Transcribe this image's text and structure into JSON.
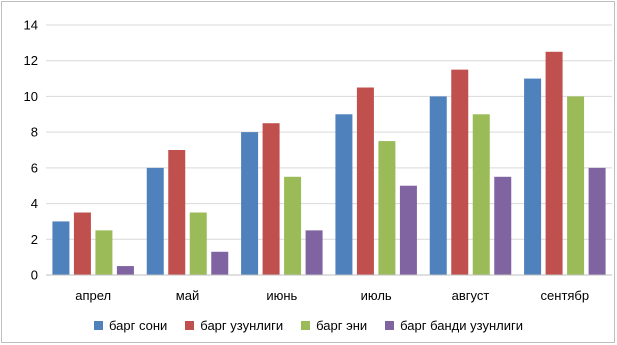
{
  "chart_data": {
    "type": "bar",
    "categories": [
      "апрел",
      "май",
      "июнь",
      "июль",
      "август",
      "сентябр"
    ],
    "series": [
      {
        "name": "барг сони",
        "color": "#4f81bd",
        "values": [
          3,
          6,
          8,
          9,
          10,
          11
        ]
      },
      {
        "name": "барг узунлиги",
        "color": "#c0504d",
        "values": [
          3.5,
          7,
          8.5,
          10.5,
          11.5,
          12.5
        ]
      },
      {
        "name": "барг эни",
        "color": "#9bbb59",
        "values": [
          2.5,
          3.5,
          5.5,
          7.5,
          9,
          10
        ]
      },
      {
        "name": "барг банди узунлиги",
        "color": "#8064a2",
        "values": [
          0.5,
          1.3,
          2.5,
          5,
          5.5,
          6
        ]
      }
    ],
    "y_ticks": [
      "0",
      "2",
      "4",
      "6",
      "8",
      "10",
      "12",
      "14"
    ],
    "ylim": [
      0,
      14
    ],
    "grid": true,
    "legend_position": "bottom"
  }
}
